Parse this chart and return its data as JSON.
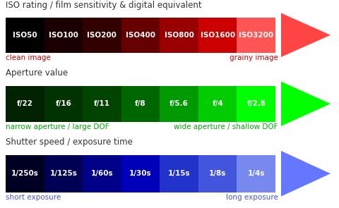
{
  "iso": {
    "title": "ISO rating / film sensitivity & digital equivalent",
    "labels": [
      "ISO50",
      "ISO100",
      "ISO200",
      "ISO400",
      "ISO800",
      "ISO1600",
      "ISO3200"
    ],
    "colors": [
      "#000000",
      "#1a0000",
      "#330000",
      "#660000",
      "#990000",
      "#cc0000",
      "#ff5555"
    ],
    "arrow_color": "#ff4444",
    "left_label": "clean image",
    "right_label": "grainy image",
    "label_color": "#cc0000"
  },
  "aperture": {
    "title": "Aperture value",
    "labels": [
      "f/22",
      "f/16",
      "f/11",
      "f/8",
      "f/5.6",
      "f/4",
      "f/2.8"
    ],
    "colors": [
      "#002200",
      "#003300",
      "#004400",
      "#006600",
      "#009900",
      "#00cc00",
      "#00ff00"
    ],
    "arrow_color": "#00ff00",
    "left_label": "narrow aperture / large DOF",
    "right_label": "wide aperture / shallow DOF",
    "label_color": "#00aa00"
  },
  "shutter": {
    "title": "Shutter speed / exposure time",
    "labels": [
      "1/250s",
      "1/125s",
      "1/60s",
      "1/30s",
      "1/15s",
      "1/8s",
      "1/4s"
    ],
    "colors": [
      "#000022",
      "#000055",
      "#000088",
      "#0000bb",
      "#2233cc",
      "#4455dd",
      "#7788ee"
    ],
    "arrow_color": "#6677ff",
    "left_label": "short exposure",
    "right_label": "long exposure",
    "label_color": "#4455cc"
  },
  "bg_color": "#ffffff",
  "bar_text_color": "#ffffff",
  "title_color": "#333333",
  "title_fontsize": 8.5,
  "bar_fontsize": 7.5,
  "label_fontsize": 7.5,
  "fig_width": 4.8,
  "fig_height": 2.95,
  "dpi": 100
}
